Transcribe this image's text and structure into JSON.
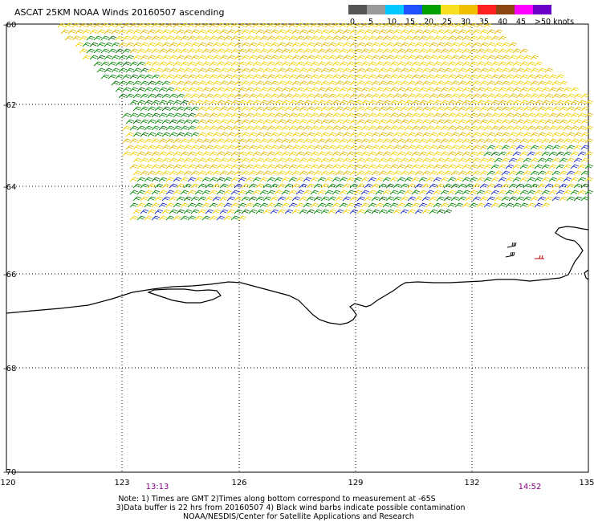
{
  "title": "ASCAT 25KM NOAA Winds 20160507 ascending",
  "legend": {
    "labels": [
      "0",
      "5",
      "10",
      "15",
      "20",
      "25",
      "30",
      "35",
      "40",
      "45",
      ">50 knots"
    ],
    "colors": [
      "#555555",
      "#9a9a9a",
      "#00c8ff",
      "#2050ff",
      "#00a000",
      "#f8e020",
      "#f0c000",
      "#ff2020",
      "#8b4513",
      "#ff00ff",
      "#6a00c8"
    ]
  },
  "latitude_labels": [
    "-60",
    "-62",
    "-64",
    "-66",
    "-68",
    "-70"
  ],
  "longitude_labels": [
    "120",
    "123",
    "126",
    "129",
    "132",
    "135"
  ],
  "time_labels": [
    "13:13",
    "14:52"
  ],
  "notes": {
    "line1": "Note: 1) Times are GMT 2)Times along bottom correspond to measurement at -65S",
    "line2": "3)Data buffer is 22 hrs from 20160507 4) Black wind barbs indicate possible contamination",
    "line3": "NOAA/NESDIS/Center for Satellite Applications and Research"
  },
  "wind_colors": {
    "yellow": "#f0d000",
    "gold": "#e0b800",
    "green": "#0a8a0a",
    "dark_green": "#006400",
    "blue": "#2030c0",
    "red": "#c00000",
    "black": "#000000"
  }
}
